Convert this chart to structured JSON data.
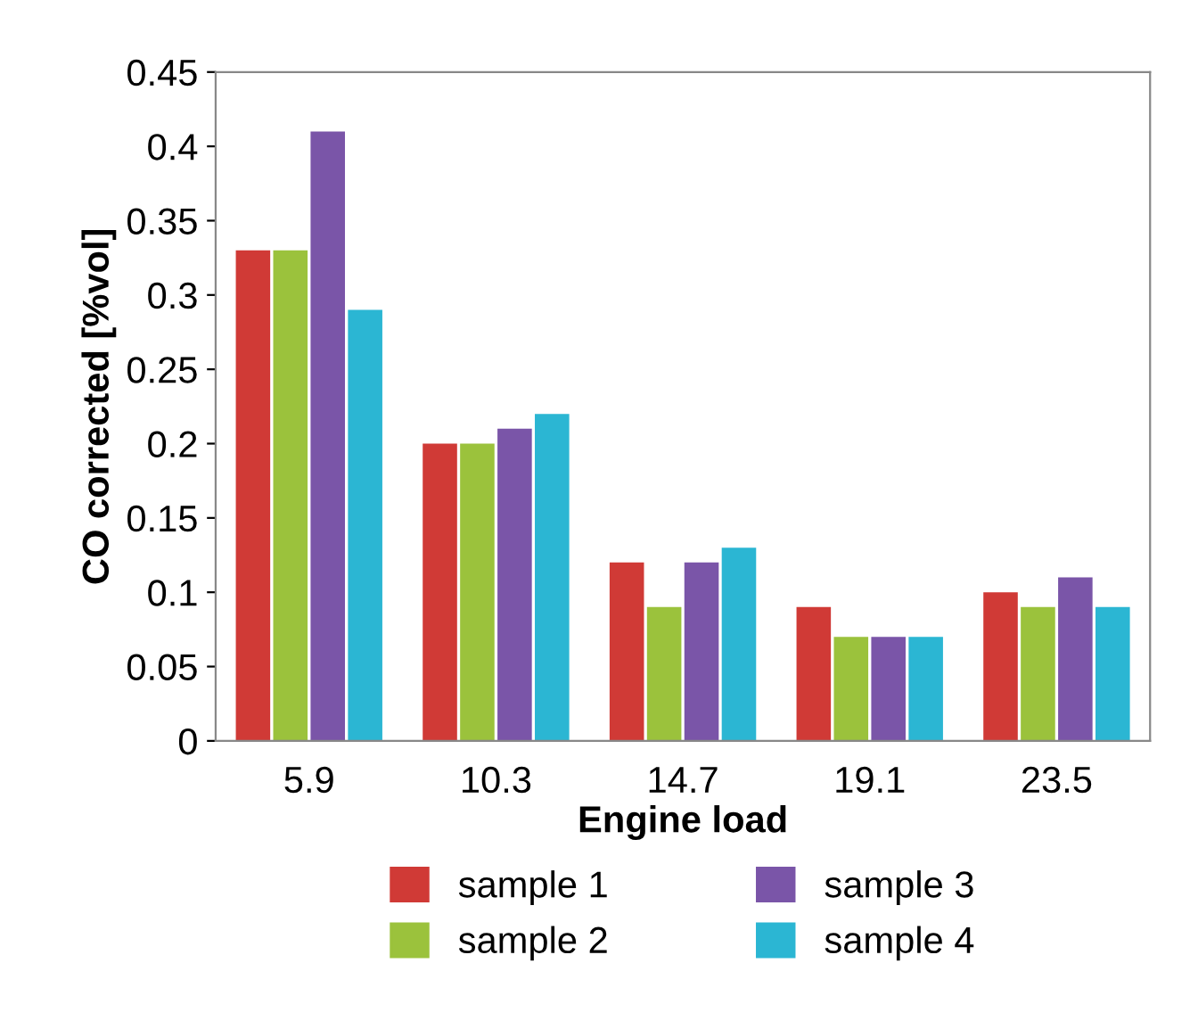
{
  "chart_data": {
    "type": "bar",
    "xlabel": "Engine load",
    "ylabel": "CO corrected [%vol]",
    "categories": [
      "5.9",
      "10.3",
      "14.7",
      "19.1",
      "23.5"
    ],
    "series": [
      {
        "name": "sample 1",
        "color": "#d03a36",
        "values": [
          0.33,
          0.2,
          0.12,
          0.09,
          0.1
        ]
      },
      {
        "name": "sample 2",
        "color": "#9bc23c",
        "values": [
          0.33,
          0.2,
          0.09,
          0.07,
          0.09
        ]
      },
      {
        "name": "sample 3",
        "color": "#7a55a8",
        "values": [
          0.41,
          0.21,
          0.12,
          0.07,
          0.11
        ]
      },
      {
        "name": "sample 4",
        "color": "#2bb6d3",
        "values": [
          0.29,
          0.22,
          0.13,
          0.07,
          0.09
        ]
      }
    ],
    "ylim": [
      0,
      0.45
    ],
    "yticks": [
      0,
      0.05,
      0.1,
      0.15,
      0.2,
      0.25,
      0.3,
      0.35,
      0.4,
      0.45
    ],
    "grid": false,
    "legend": "bottom"
  }
}
